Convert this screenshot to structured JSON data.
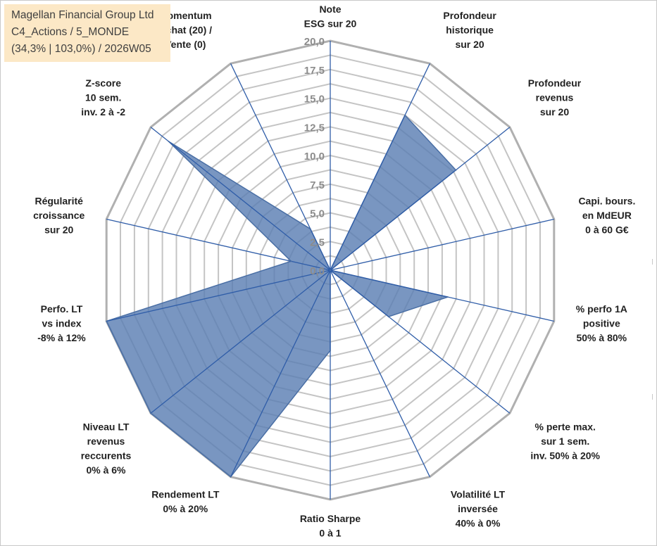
{
  "info": {
    "company": "Magellan Financial Group Ltd",
    "category": "C4_Actions / 5_MONDE",
    "stats": "(34,3% | 103,0%) / 2026W05"
  },
  "colors": {
    "fill": "#5b7fb3",
    "stroke": "#4a6fa5",
    "axis": "#2f5da8",
    "grid": "#c4c4c4",
    "outer_grid": "#b0b0b0",
    "tick_text": "#8c8c8c",
    "info_bg": "#fce8c6"
  },
  "chart_data": {
    "type": "radar",
    "r_min": 0,
    "r_max": 20,
    "grid_step": 1.25,
    "tick_labels": [
      "0,0",
      "2,5",
      "5,0",
      "7,5",
      "10,0",
      "12,5",
      "15,0",
      "17,5",
      "20,0"
    ],
    "axes": [
      {
        "label": [
          "Note",
          "ESG sur 20"
        ],
        "value": 0
      },
      {
        "label": [
          "Profondeur",
          "historique",
          "sur 20"
        ],
        "value": 15
      },
      {
        "label": [
          "Profondeur",
          "revenus",
          "sur 20"
        ],
        "value": 14
      },
      {
        "label": [
          "Capi. bours.",
          "en MdEUR",
          "0 à 60 G€"
        ],
        "value": 0
      },
      {
        "label": [
          "% perfo 1A",
          "positive",
          "50% à 80%"
        ],
        "value": 10.5
      },
      {
        "label": [
          "% perte max.",
          "sur 1 sem.",
          "inv. 50% à 20%"
        ],
        "value": 6.5
      },
      {
        "label": [
          "Volatilité LT",
          "inversée",
          "40% à 0%"
        ],
        "value": 0
      },
      {
        "label": [
          "Ratio Sharpe",
          "0 à 1"
        ],
        "value": 7
      },
      {
        "label": [
          "Rendement LT",
          "0% à 20%"
        ],
        "value": 20
      },
      {
        "label": [
          "Niveau LT",
          "revenus",
          "reccurents",
          "0% à 6%"
        ],
        "value": 20
      },
      {
        "label": [
          "Perfo. LT",
          "vs index",
          "-8% à 12%"
        ],
        "value": 20
      },
      {
        "label": [
          "Régularité",
          "croissance",
          "sur 20"
        ],
        "value": 3.5
      },
      {
        "label": [
          "Z-score",
          "10 sem.",
          "inv. 2 à -2"
        ],
        "value": 18
      },
      {
        "label": [
          "Momentum",
          "Achat (20) /",
          "Vente (0)"
        ],
        "value": 4
      }
    ]
  }
}
